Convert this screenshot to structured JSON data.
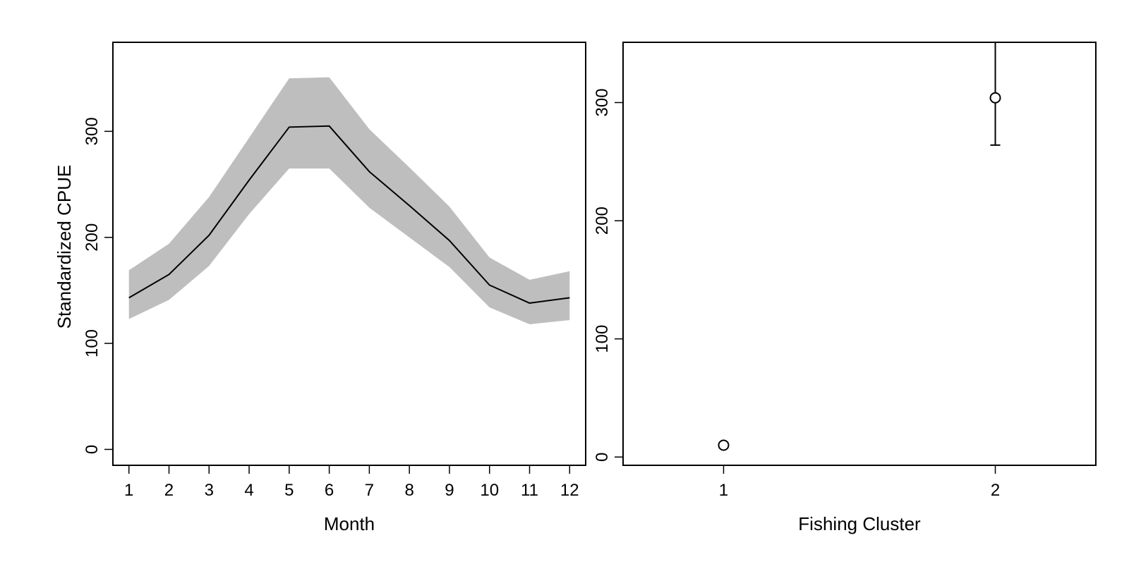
{
  "chart_data": [
    {
      "type": "area",
      "title": "",
      "xlabel": "Month",
      "ylabel": "Standardized CPUE",
      "x": [
        1,
        2,
        3,
        4,
        5,
        6,
        7,
        8,
        9,
        10,
        11,
        12
      ],
      "series": [
        {
          "values": [
            143,
            165,
            202,
            254,
            304,
            305,
            262,
            230,
            197,
            155,
            138,
            143
          ],
          "lower": [
            123,
            141,
            173,
            222,
            265,
            265,
            228,
            200,
            172,
            134,
            118,
            122
          ],
          "upper": [
            169,
            194,
            238,
            294,
            350,
            351,
            302,
            266,
            229,
            181,
            160,
            168
          ],
          "line_color": "#000000",
          "band_color": "#bebebe"
        }
      ],
      "xlim": [
        0.6,
        12.4
      ],
      "ylim": [
        -15,
        384
      ],
      "xticks": [
        1,
        2,
        3,
        4,
        5,
        6,
        7,
        8,
        9,
        10,
        11,
        12
      ],
      "yticks": [
        0,
        100,
        200,
        300
      ],
      "grid": false
    },
    {
      "type": "scatter",
      "title": "",
      "xlabel": "Fishing Cluster",
      "ylabel": "",
      "categories": [
        "1",
        "2"
      ],
      "series": [
        {
          "values": [
            10,
            304
          ],
          "lower": [
            8,
            264
          ],
          "upper": [
            12,
            351
          ],
          "color": "#000000"
        }
      ],
      "xlim": [
        0.63,
        2.37
      ],
      "ylim": [
        -7,
        351
      ],
      "xticks": [
        1,
        2
      ],
      "yticks": [
        0,
        100,
        200,
        300
      ],
      "grid": false
    }
  ]
}
